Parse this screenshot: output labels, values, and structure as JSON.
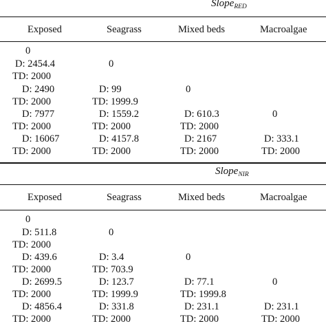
{
  "sections": [
    {
      "title_main": "Slope",
      "title_sub": "RED",
      "headers": [
        "Exposed",
        "Seagrass",
        "Mixed beds",
        "Macroalgae"
      ],
      "rows": [
        [
          "0",
          "",
          "",
          ""
        ],
        [
          "D: 2454.4",
          "0",
          "",
          ""
        ],
        [
          "TD: 2000",
          "",
          "",
          ""
        ],
        [
          "D: 2490",
          "D: 99",
          "0",
          ""
        ],
        [
          "TD: 2000",
          "TD: 1999.9",
          "",
          ""
        ],
        [
          "D: 7977",
          "D: 1559.2",
          "D: 610.3",
          "0"
        ],
        [
          "TD: 2000",
          "TD: 2000",
          "TD: 2000",
          ""
        ],
        [
          "D: 16067",
          "D: 4157.8",
          "D: 2167",
          "D: 333.1"
        ],
        [
          "TD: 2000",
          "TD: 2000",
          "TD: 2000",
          "TD: 2000"
        ]
      ]
    },
    {
      "title_main": "Slope",
      "title_sub": "NIR",
      "headers": [
        "Exposed",
        "Seagrass",
        "Mixed beds",
        "Macroalgae"
      ],
      "rows": [
        [
          "0",
          "",
          "",
          ""
        ],
        [
          "D: 511.8",
          "0",
          "",
          ""
        ],
        [
          "TD: 2000",
          "",
          "",
          ""
        ],
        [
          "D: 439.6",
          "D: 3.4",
          "0",
          ""
        ],
        [
          "TD: 2000",
          "TD: 703.9",
          "",
          ""
        ],
        [
          "D: 2699.5",
          "D: 123.7",
          "D: 77.1",
          "0"
        ],
        [
          "TD: 2000",
          "TD: 1999.9",
          "TD: 1999.8",
          ""
        ],
        [
          "D: 4856.4",
          "D: 331.8",
          "D: 231.1",
          "D: 231.1"
        ],
        [
          "TD: 2000",
          "TD: 2000",
          "TD: 2000",
          "TD: 2000"
        ]
      ]
    }
  ]
}
